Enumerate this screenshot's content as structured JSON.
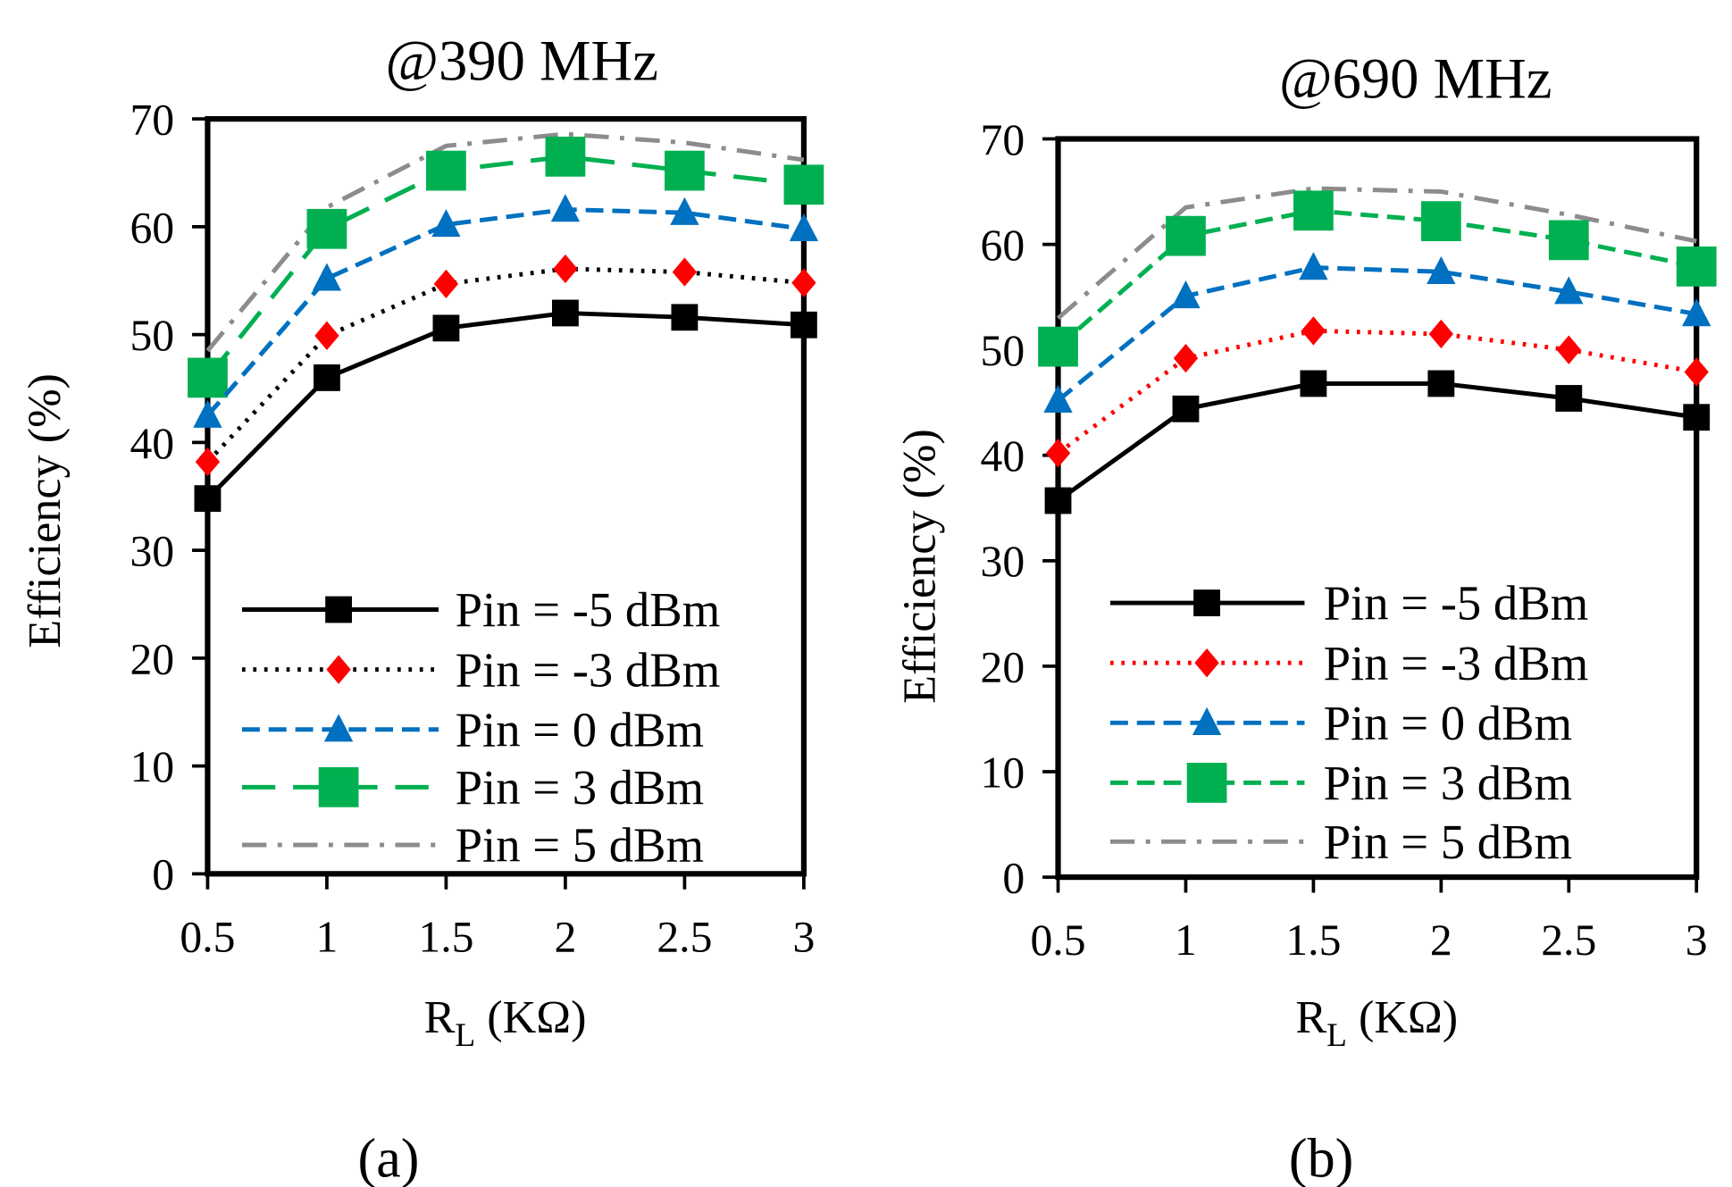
{
  "chart_data": [
    {
      "type": "line",
      "panel_label": "(a)",
      "title": "@390 MHz",
      "xlabel_main": "R",
      "xlabel_sub": "L",
      "xlabel_rest": " (KΩ)",
      "ylabel": "Efficiency (%)",
      "x": [
        0.5,
        1,
        1.5,
        2,
        2.5,
        3
      ],
      "xticks": [
        "0.5",
        "1",
        "1.5",
        "2",
        "2.5",
        "3"
      ],
      "yticks": [
        "0",
        "10",
        "20",
        "30",
        "40",
        "50",
        "60",
        "70"
      ],
      "xlim": [
        0.5,
        3
      ],
      "ylim": [
        0,
        70
      ],
      "legend_position": "bottom-center",
      "series": [
        {
          "name": "Pin = -5 dBm",
          "color": "#000000",
          "dash": "solid",
          "marker": "square",
          "values": [
            34.8,
            46.0,
            50.6,
            52.0,
            51.6,
            50.9
          ]
        },
        {
          "name": "Pin = -3 dBm",
          "color": "#000000",
          "dash": "dot",
          "marker": "diamond",
          "marker_color": "#ff0000",
          "values": [
            38.2,
            49.9,
            54.7,
            56.1,
            55.8,
            54.8
          ]
        },
        {
          "name": "Pin = 0 dBm",
          "color": "#0070c0",
          "dash": "dash",
          "marker": "triangle",
          "values": [
            42.5,
            55.2,
            60.2,
            61.6,
            61.3,
            59.8
          ]
        },
        {
          "name": "Pin = 3 dBm",
          "color": "#00b050",
          "dash": "longdash",
          "marker": "bigsquare",
          "values": [
            46.0,
            59.8,
            65.2,
            66.5,
            65.2,
            63.9
          ]
        },
        {
          "name": "Pin = 5 dBm",
          "color": "#8c8c8c",
          "dash": "dashdot",
          "marker": "none",
          "values": [
            48.5,
            61.8,
            67.5,
            68.6,
            67.8,
            66.2
          ]
        }
      ]
    },
    {
      "type": "line",
      "panel_label": "(b)",
      "title": "@690 MHz",
      "xlabel_main": "R",
      "xlabel_sub": "L",
      "xlabel_rest": " (KΩ)",
      "ylabel": "Efficiency (%)",
      "x": [
        0.5,
        1,
        1.5,
        2,
        2.5,
        3
      ],
      "xticks": [
        "0.5",
        "1",
        "1.5",
        "2",
        "2.5",
        "3"
      ],
      "yticks": [
        "0",
        "10",
        "20",
        "30",
        "40",
        "50",
        "60",
        "70"
      ],
      "xlim": [
        0.5,
        3
      ],
      "ylim": [
        0,
        70
      ],
      "legend_position": "bottom-center",
      "series": [
        {
          "name": "Pin = -5 dBm",
          "color": "#000000",
          "dash": "solid",
          "marker": "square",
          "values": [
            35.7,
            44.4,
            46.8,
            46.8,
            45.4,
            43.6
          ]
        },
        {
          "name": "Pin = -3 dBm",
          "color": "#ff0000",
          "dash": "dot",
          "marker": "diamond",
          "marker_color": "#ff0000",
          "values": [
            40.2,
            49.2,
            51.8,
            51.5,
            50.0,
            47.9
          ]
        },
        {
          "name": "Pin = 0 dBm",
          "color": "#0070c0",
          "dash": "dash",
          "marker": "triangle",
          "values": [
            45.2,
            55.1,
            57.8,
            57.4,
            55.5,
            53.4
          ]
        },
        {
          "name": "Pin = 3 dBm",
          "color": "#00b050",
          "dash": "dash",
          "marker": "bigsquare",
          "values": [
            50.3,
            60.8,
            63.2,
            62.2,
            60.4,
            57.9
          ]
        },
        {
          "name": "Pin = 5 dBm",
          "color": "#8c8c8c",
          "dash": "dashdot",
          "marker": "none",
          "values": [
            53.0,
            63.5,
            65.3,
            65.0,
            62.8,
            60.3
          ]
        }
      ]
    }
  ]
}
